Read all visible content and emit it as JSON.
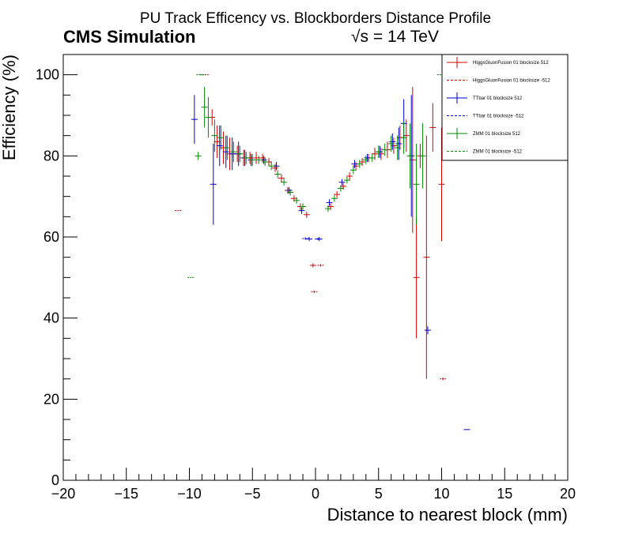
{
  "chart_data": {
    "type": "scatter",
    "title": "PU Track Efficency vs. Blockborders Distance Profile",
    "label_left": "CMS Simulation",
    "label_right": "√s = 14 TeV",
    "xlabel": "Distance to nearest block (mm)",
    "ylabel": "Efficiency (%)",
    "xlim": [
      -20,
      20
    ],
    "ylim": [
      0,
      105
    ],
    "x_ticks": [
      "−20",
      "−15",
      "−10",
      "−5",
      "0",
      "5",
      "10",
      "15",
      "20"
    ],
    "y_ticks": [
      "0",
      "20",
      "40",
      "60",
      "80",
      "100"
    ],
    "grid": false,
    "legend_position": "top-right",
    "series": [
      {
        "name": "HiggsGluonFusion 01 blocksize 512",
        "color": "#d40000",
        "dashed": false,
        "points": [
          [
            -8.2,
            89.5,
            2.0
          ],
          [
            -7.8,
            83.5,
            4.0
          ],
          [
            -7.3,
            82.0,
            4.0
          ],
          [
            -6.8,
            80.5,
            4.0
          ],
          [
            -6.2,
            80.5,
            2.0
          ],
          [
            -5.7,
            79.5,
            2.0
          ],
          [
            -5.2,
            79.5,
            1.5
          ],
          [
            -4.7,
            79.5,
            1.5
          ],
          [
            -4.2,
            79.5,
            1.0
          ],
          [
            -3.7,
            78.5,
            1.0
          ],
          [
            -3.2,
            77.0,
            1.0
          ],
          [
            -2.7,
            74.5,
            1.0
          ],
          [
            -2.2,
            71.5,
            0.8
          ],
          [
            -1.7,
            69.5,
            0.8
          ],
          [
            -1.2,
            67.5,
            0.8
          ],
          [
            -0.7,
            65.5,
            0.8
          ],
          [
            -0.2,
            53.0,
            0.5
          ],
          [
            1.2,
            67.5,
            0.8
          ],
          [
            1.7,
            70.5,
            0.8
          ],
          [
            2.2,
            72.5,
            0.8
          ],
          [
            2.7,
            75.0,
            1.0
          ],
          [
            3.2,
            77.5,
            1.0
          ],
          [
            3.7,
            78.5,
            1.0
          ],
          [
            4.2,
            79.5,
            1.0
          ],
          [
            4.7,
            80.5,
            1.5
          ],
          [
            5.2,
            80.5,
            1.5
          ],
          [
            5.7,
            81.5,
            2.0
          ],
          [
            6.2,
            82.5,
            2.0
          ],
          [
            6.7,
            84.5,
            3.0
          ],
          [
            7.2,
            85.0,
            4.0
          ],
          [
            7.7,
            79.0,
            18.0
          ],
          [
            8.0,
            50.0,
            15.0
          ],
          [
            8.3,
            80.0,
            3.0
          ],
          [
            8.8,
            55.0,
            30.0
          ],
          [
            9.3,
            87.0,
            6.0
          ],
          [
            10.0,
            73.0,
            14.0
          ]
        ]
      },
      {
        "name": "HiggsGluonFusion 01 blocksize -512",
        "color": "#d40000",
        "dashed": true,
        "points": [
          [
            -10.9,
            66.5,
            0.2
          ],
          [
            -0.1,
            46.5,
            0.3
          ],
          [
            0.4,
            53.0,
            0.3
          ],
          [
            10.1,
            25.0,
            0.3
          ],
          [
            -8.7,
            100.0,
            0.2
          ]
        ]
      },
      {
        "name": "TTbar 01 blocksize 512",
        "color": "#0000d4",
        "dashed": false,
        "points": [
          [
            -9.6,
            89.0,
            6.0
          ],
          [
            -8.1,
            73.0,
            10.0
          ],
          [
            -7.6,
            82.5,
            5.0
          ],
          [
            -7.1,
            81.0,
            4.0
          ],
          [
            -6.6,
            80.5,
            4.0
          ],
          [
            -6.1,
            80.5,
            3.0
          ],
          [
            -5.6,
            79.5,
            2.0
          ],
          [
            -5.1,
            79.0,
            1.5
          ],
          [
            -4.1,
            79.0,
            1.0
          ],
          [
            -3.1,
            77.5,
            1.0
          ],
          [
            -2.1,
            71.5,
            0.8
          ],
          [
            -1.1,
            66.5,
            0.8
          ],
          [
            -0.5,
            59.5,
            0.5
          ],
          [
            0.3,
            59.5,
            0.5
          ],
          [
            1.1,
            68.5,
            0.8
          ],
          [
            2.1,
            73.5,
            0.8
          ],
          [
            3.1,
            78.0,
            1.0
          ],
          [
            4.1,
            79.5,
            1.0
          ],
          [
            5.1,
            81.0,
            1.5
          ],
          [
            6.1,
            83.5,
            2.0
          ],
          [
            6.6,
            83.0,
            4.0
          ],
          [
            7.0,
            88.0,
            6.0
          ],
          [
            7.6,
            80.0,
            15.0
          ],
          [
            8.9,
            37.0,
            1.0
          ],
          [
            12.0,
            12.5,
            0.2
          ]
        ]
      },
      {
        "name": "TTbar 01 blocksize -512",
        "color": "#0000d4",
        "dashed": true,
        "points": [
          [
            0.2,
            59.5,
            0.3
          ],
          [
            -0.8,
            59.6,
            0.3
          ]
        ]
      },
      {
        "name": "ZMM 01 blocksize 512",
        "color": "#008800",
        "dashed": false,
        "points": [
          [
            -9.3,
            80.0,
            1.0
          ],
          [
            -8.8,
            92.0,
            5.0
          ],
          [
            -8.5,
            89.5,
            5.0
          ],
          [
            -8.0,
            85.0,
            4.0
          ],
          [
            -7.5,
            84.5,
            3.0
          ],
          [
            -7.0,
            82.0,
            3.0
          ],
          [
            -6.5,
            81.0,
            2.5
          ],
          [
            -6.0,
            80.5,
            2.0
          ],
          [
            -5.5,
            79.5,
            1.5
          ],
          [
            -5.0,
            79.0,
            1.5
          ],
          [
            -4.5,
            79.0,
            1.0
          ],
          [
            -4.0,
            78.5,
            1.0
          ],
          [
            -3.5,
            77.5,
            1.0
          ],
          [
            -3.0,
            75.5,
            1.0
          ],
          [
            -2.5,
            73.5,
            0.8
          ],
          [
            -2.0,
            71.0,
            0.8
          ],
          [
            -1.5,
            69.0,
            0.8
          ],
          [
            -1.0,
            67.5,
            0.8
          ],
          [
            1.0,
            67.0,
            0.8
          ],
          [
            1.5,
            69.5,
            0.8
          ],
          [
            2.0,
            72.0,
            0.8
          ],
          [
            2.5,
            74.0,
            0.8
          ],
          [
            3.0,
            76.5,
            1.0
          ],
          [
            3.5,
            78.0,
            1.0
          ],
          [
            4.0,
            79.0,
            1.0
          ],
          [
            4.5,
            79.5,
            1.0
          ],
          [
            5.0,
            81.0,
            1.5
          ],
          [
            5.5,
            81.5,
            1.5
          ],
          [
            6.0,
            83.0,
            2.0
          ],
          [
            6.5,
            82.0,
            3.0
          ],
          [
            7.0,
            84.5,
            4.0
          ],
          [
            7.5,
            80.0,
            8.0
          ],
          [
            8.0,
            73.0,
            10.0
          ],
          [
            8.5,
            80.0,
            8.0
          ]
        ]
      },
      {
        "name": "ZMM 01 blocksize -512",
        "color": "#008800",
        "dashed": true,
        "points": [
          [
            -9.9,
            50.0,
            0.2
          ],
          [
            -9.2,
            100.0,
            0.2
          ],
          [
            -8.9,
            100.0,
            0.2
          ],
          [
            9.9,
            100.0,
            0.2
          ]
        ]
      }
    ]
  }
}
